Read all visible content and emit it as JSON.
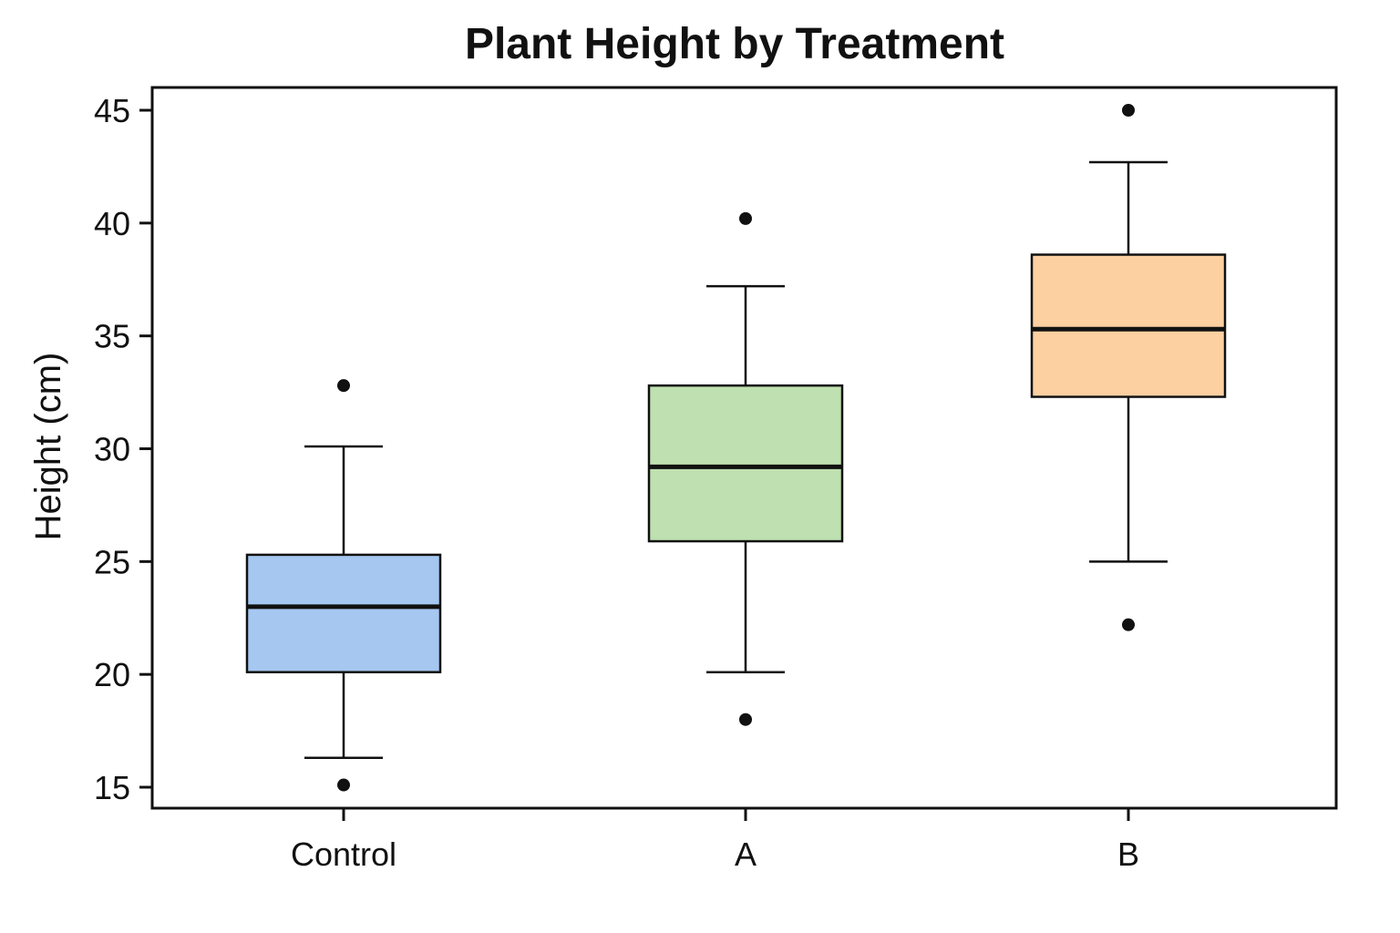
{
  "chart_data": {
    "type": "box",
    "title": "Plant Height by Treatment",
    "xlabel": "",
    "ylabel": "Height (cm)",
    "ylim": [
      14,
      46
    ],
    "yticks": [
      15,
      20,
      25,
      30,
      35,
      40,
      45
    ],
    "grid": false,
    "categories": [
      "Control",
      "A",
      "B"
    ],
    "boxes": [
      {
        "category": "Control",
        "whisker_low": 16.3,
        "q1": 20.1,
        "median": 23.0,
        "q3": 25.3,
        "whisker_high": 30.1,
        "outliers": [
          15.1,
          32.8
        ],
        "color": "#a6c8f0"
      },
      {
        "category": "A",
        "whisker_low": 20.1,
        "q1": 25.9,
        "median": 29.2,
        "q3": 32.8,
        "whisker_high": 37.2,
        "outliers": [
          18.0,
          40.2
        ],
        "color": "#bfe0b0"
      },
      {
        "category": "B",
        "whisker_low": 25.0,
        "q1": 32.3,
        "median": 35.3,
        "q3": 38.6,
        "whisker_high": 42.7,
        "outliers": [
          22.2,
          45.0
        ],
        "color": "#fdd0a2"
      }
    ]
  }
}
